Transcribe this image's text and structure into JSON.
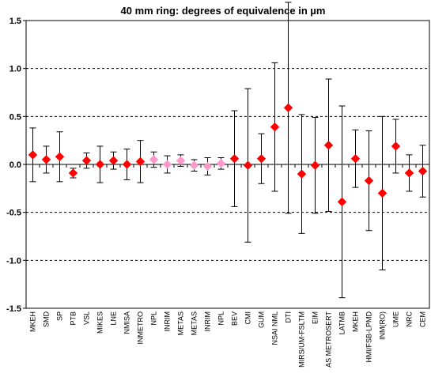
{
  "chart_data": {
    "type": "scatter",
    "title": "40 mm ring: degrees of equivalence in µm",
    "xlabel": "",
    "ylabel": "",
    "ylim": [
      -1.5,
      1.5
    ],
    "yticks": [
      "1.5",
      "1.0",
      "0.5",
      "0.0",
      "-0.5",
      "-1.0",
      "-1.5"
    ],
    "ytick_values": [
      1.5,
      1.0,
      0.5,
      0.0,
      -0.5,
      -1.0,
      -1.5
    ],
    "grid": "horizontal dashed",
    "marker": "diamond",
    "colors": {
      "primary": "#ff0000",
      "secondary": "#ff99cc",
      "errorbar": "#000000",
      "grid": "#000000"
    },
    "categories": [
      "MKEH",
      "SMD",
      "SP",
      "PTB",
      "VSL",
      "MIKES",
      "LNE",
      "NMISA",
      "INMETRO",
      "NPL",
      "INRIM",
      "METAS",
      "METAS",
      "INRIM",
      "NPL",
      "BEV",
      "CMI",
      "GUM",
      "NSAI NML",
      "DTI",
      "MIRS/UM-FSLTM",
      "EIM",
      "AS METROSERT",
      "LATMB",
      "MKEH",
      "HMI/FSB-LPMD",
      "INM(RO)",
      "UME",
      "NRC",
      "CEM"
    ],
    "values": [
      0.1,
      0.05,
      0.08,
      -0.09,
      0.04,
      0.0,
      0.04,
      0.0,
      0.03,
      0.05,
      0.0,
      0.04,
      -0.01,
      -0.02,
      0.01,
      0.06,
      -0.01,
      0.06,
      0.39,
      0.59,
      -0.1,
      -0.01,
      0.2,
      -0.39,
      0.06,
      -0.17,
      -0.3,
      0.19,
      -0.09,
      -0.07
    ],
    "uncertainty": [
      0.28,
      0.14,
      0.26,
      0.05,
      0.08,
      0.19,
      0.09,
      0.16,
      0.22,
      0.08,
      0.09,
      0.06,
      0.06,
      0.09,
      0.06,
      0.5,
      0.8,
      0.26,
      0.67,
      1.1,
      0.62,
      0.5,
      0.69,
      1.0,
      0.3,
      0.52,
      0.8,
      0.28,
      0.19,
      0.27
    ],
    "highlighted": [
      false,
      false,
      false,
      false,
      false,
      false,
      false,
      false,
      false,
      true,
      true,
      true,
      true,
      true,
      true,
      false,
      false,
      false,
      false,
      false,
      false,
      false,
      false,
      false,
      false,
      false,
      false,
      false,
      false,
      false
    ]
  }
}
